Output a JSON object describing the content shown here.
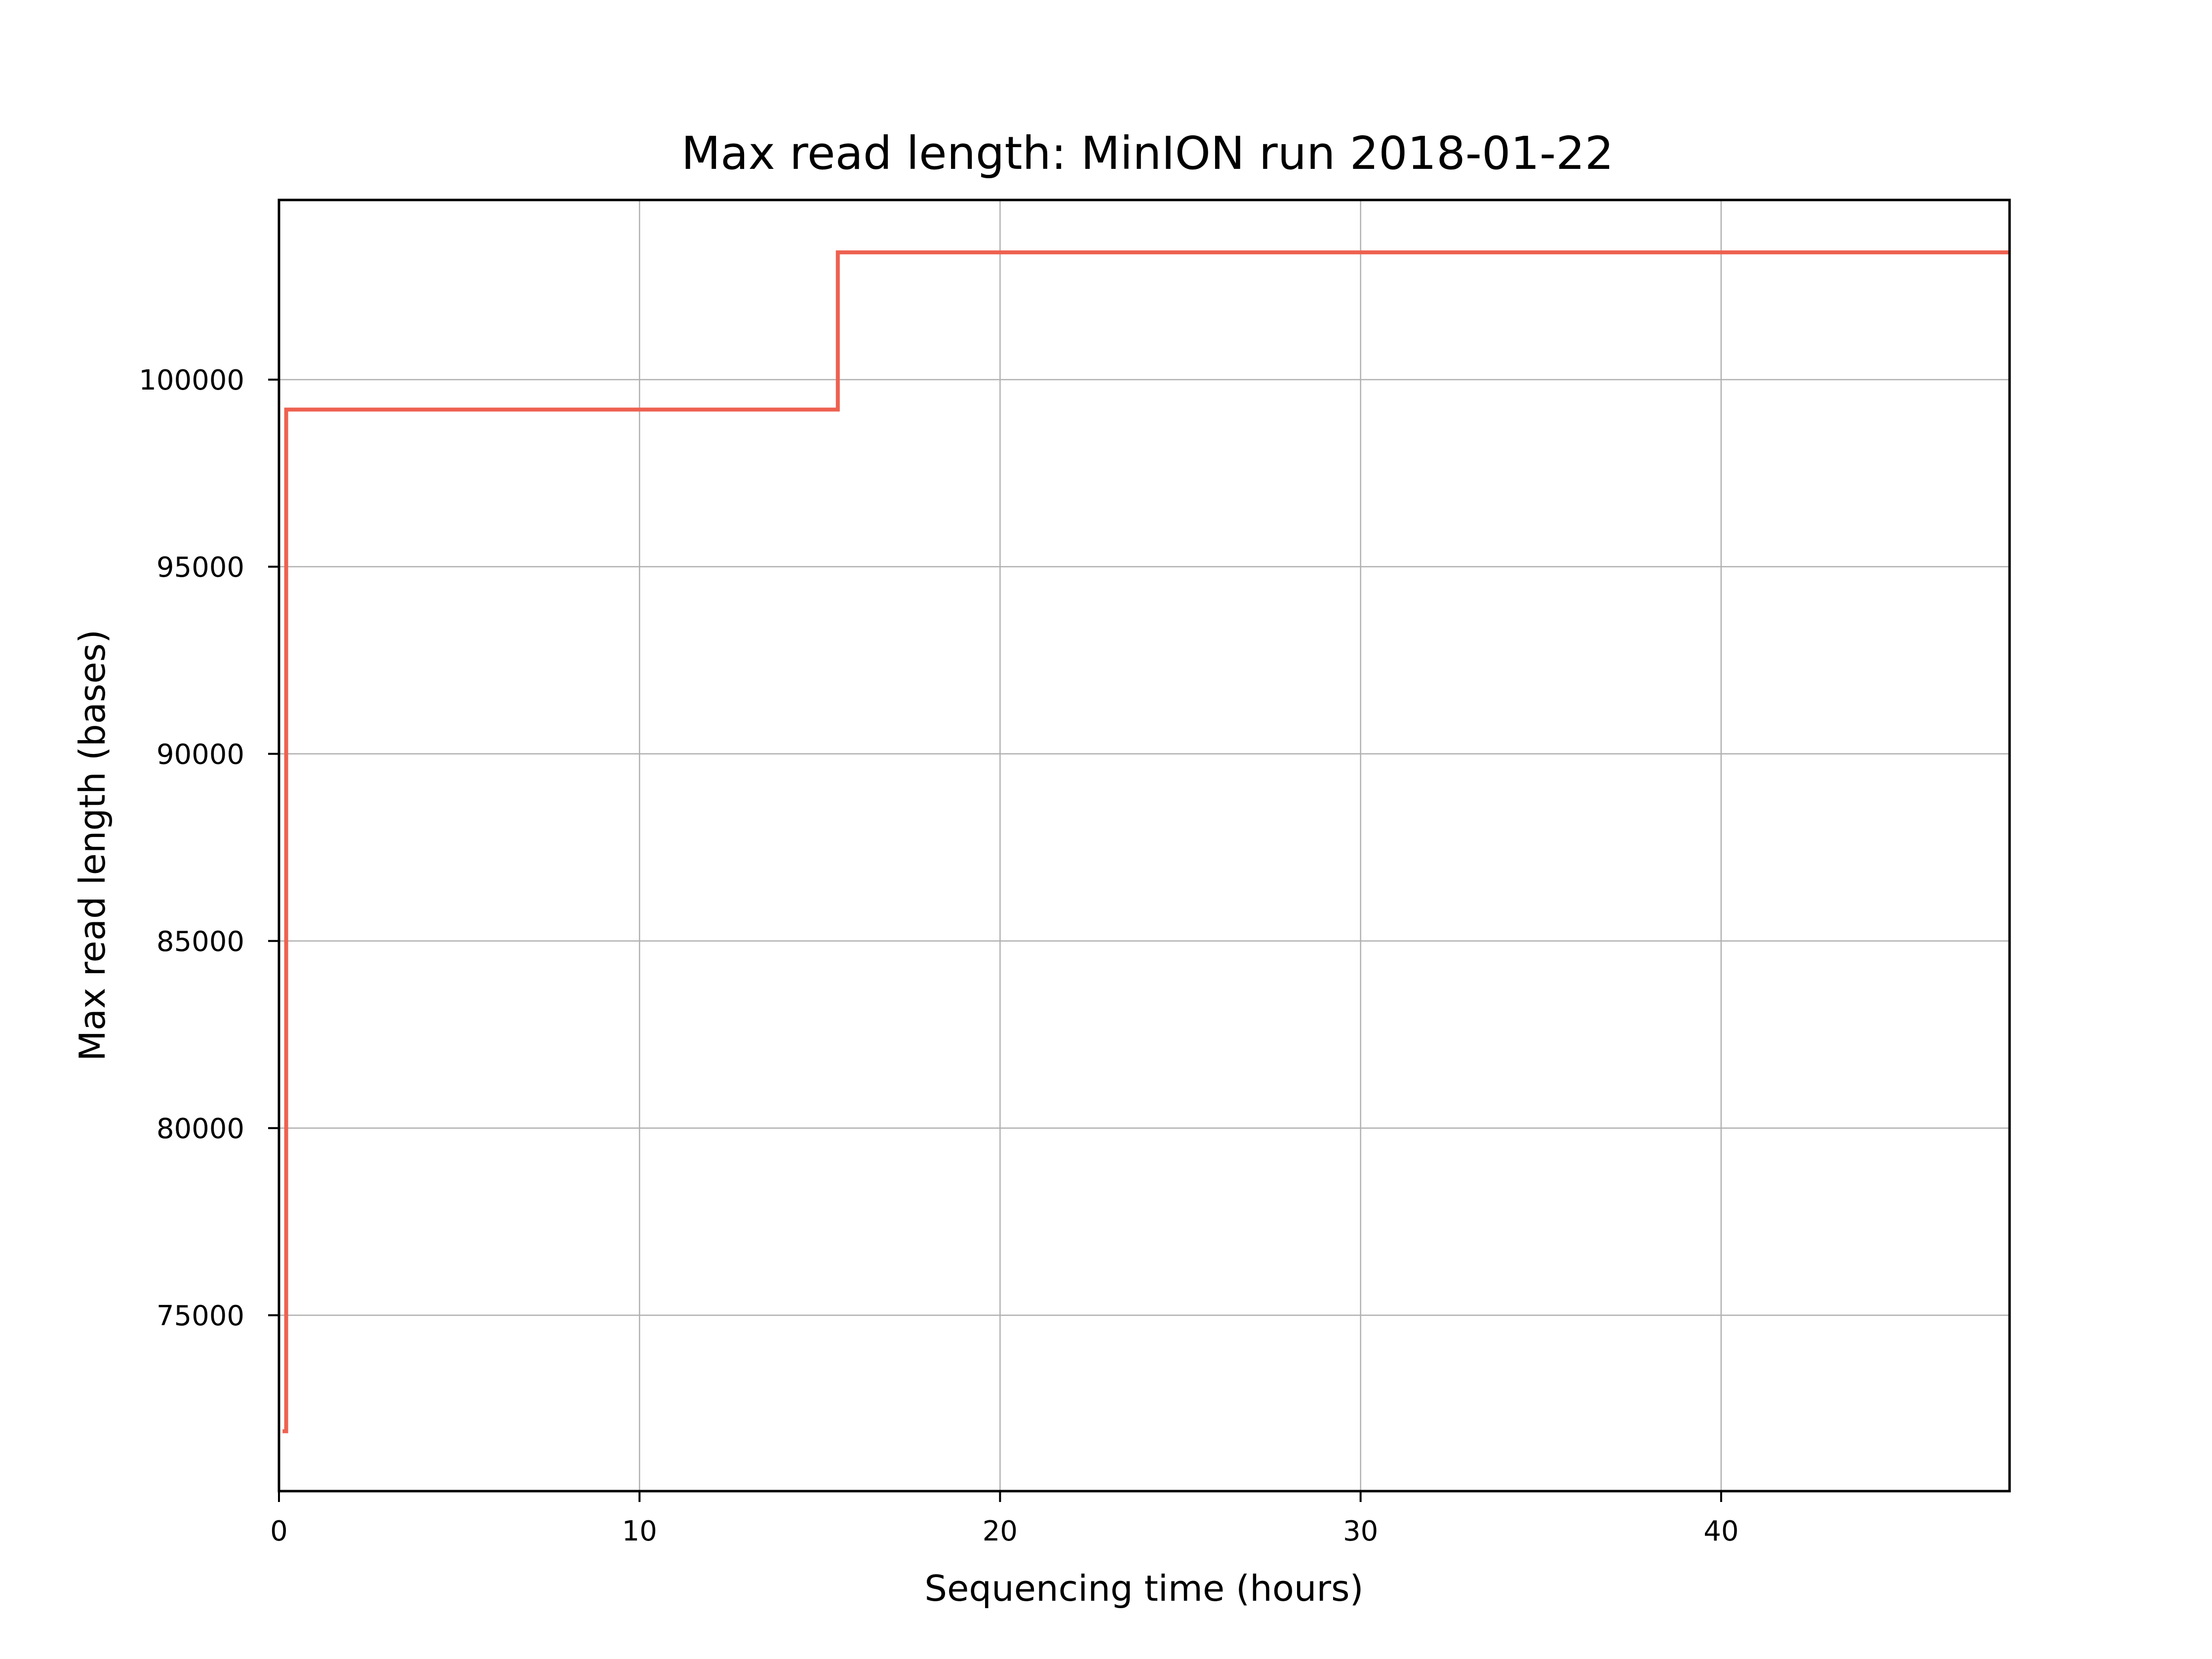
{
  "chart_data": {
    "type": "line",
    "title": "Max read length: MinION run 2018-01-22",
    "xlabel": "Sequencing time (hours)",
    "ylabel": "Max read length (bases)",
    "xlim": [
      0,
      48
    ],
    "ylim": [
      70300,
      104800
    ],
    "xticks": [
      0,
      10,
      20,
      30,
      40
    ],
    "yticks": [
      75000,
      80000,
      85000,
      90000,
      95000,
      100000
    ],
    "grid": true,
    "step": "post",
    "series": [
      {
        "color": "#ee6150",
        "x": [
          0.1,
          0.2,
          15.5,
          48
        ],
        "y": [
          71900,
          99200,
          103400,
          103400
        ]
      }
    ]
  }
}
